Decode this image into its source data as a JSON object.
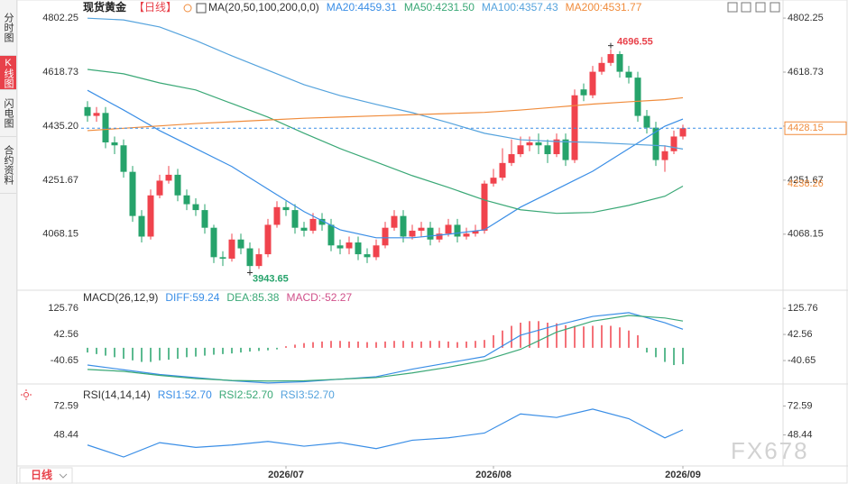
{
  "sidebar": {
    "tabs": [
      "分时图",
      "K线图",
      "闪电图",
      "合约资料"
    ],
    "active": 1
  },
  "chart_data": [
    {
      "type": "candlestick",
      "title": "现货黄金",
      "period": "【日线】",
      "ma_label": "MA(20,50,100,200,0,0)",
      "up_color": "#f0434d",
      "down_color": "#26a36b",
      "candles": {
        "open": [
          4500,
          4470,
          4480,
          4380,
          4370,
          4280,
          4130,
          4060,
          4200,
          4250,
          4270,
          4200,
          4170,
          4150,
          4090,
          3990,
          3985,
          4050,
          4020,
          3960,
          4000,
          4100,
          4160,
          4150,
          4090,
          4080,
          4120,
          4100,
          4030,
          4020,
          4040,
          4000,
          3990,
          4030,
          4090,
          4130,
          4060,
          4080,
          4090,
          4050,
          4070,
          4100,
          4060,
          4070,
          4080,
          4240,
          4260,
          4310,
          4340,
          4370,
          4380,
          4370,
          4340,
          4390,
          4320,
          4560,
          4540,
          4620,
          4650,
          4680,
          4620,
          4600,
          4470,
          4430,
          4320,
          4350,
          4400
        ],
        "high": [
          4520,
          4500,
          4500,
          4400,
          4390,
          4300,
          4150,
          4220,
          4270,
          4300,
          4290,
          4220,
          4190,
          4170,
          4100,
          4010,
          4070,
          4070,
          4040,
          4020,
          4120,
          4180,
          4180,
          4170,
          4110,
          4140,
          4140,
          4120,
          4050,
          4060,
          4060,
          4020,
          4050,
          4110,
          4150,
          4150,
          4100,
          4110,
          4110,
          4090,
          4120,
          4120,
          4090,
          4100,
          4250,
          4290,
          4360,
          4390,
          4400,
          4400,
          4410,
          4390,
          4410,
          4410,
          4560,
          4580,
          4640,
          4670,
          4696.55,
          4690,
          4640,
          4620,
          4490,
          4450,
          4370,
          4420,
          4440
        ],
        "low": [
          4450,
          4450,
          4360,
          4340,
          4260,
          4110,
          4040,
          4050,
          4190,
          4240,
          4180,
          4150,
          4130,
          4070,
          3970,
          3960,
          3975,
          4000,
          3943.65,
          3950,
          3990,
          4090,
          4130,
          4070,
          4060,
          4070,
          4080,
          4010,
          4000,
          4000,
          3980,
          3970,
          3980,
          4020,
          4080,
          4040,
          4050,
          4060,
          4030,
          4040,
          4060,
          4040,
          4050,
          4060,
          4070,
          4230,
          4250,
          4300,
          4330,
          4350,
          4340,
          4310,
          4330,
          4300,
          4310,
          4520,
          4530,
          4610,
          4640,
          4600,
          4580,
          4450,
          4410,
          4300,
          4280,
          4340,
          4390
        ],
        "close": [
          4470,
          4480,
          4380,
          4370,
          4280,
          4130,
          4060,
          4200,
          4250,
          4270,
          4200,
          4170,
          4150,
          4090,
          3990,
          3985,
          4050,
          4020,
          3960,
          4000,
          4100,
          4160,
          4150,
          4090,
          4080,
          4120,
          4100,
          4030,
          4020,
          4040,
          4000,
          3990,
          4030,
          4090,
          4130,
          4060,
          4080,
          4090,
          4050,
          4070,
          4100,
          4060,
          4070,
          4080,
          4240,
          4260,
          4310,
          4340,
          4370,
          4380,
          4370,
          4340,
          4390,
          4320,
          4540,
          4540,
          4620,
          4650,
          4680,
          4620,
          4600,
          4470,
          4430,
          4320,
          4350,
          4400,
          4428.15
        ]
      },
      "ma": {
        "x": [
          0,
          4,
          8,
          12,
          16,
          20,
          24,
          28,
          32,
          36,
          40,
          44,
          48,
          52,
          56,
          60,
          64,
          66
        ],
        "series": [
          {
            "name": "MA20:4459.31",
            "color": "#3a8ee6",
            "values": [
              4557,
              4490,
              4420,
              4359,
              4298,
              4221,
              4145,
              4083,
              4056,
              4056,
              4068,
              4083,
              4160,
              4221,
              4282,
              4359,
              4435,
              4459.31
            ]
          },
          {
            "name": "MA50:4231.50",
            "color": "#3aa876",
            "values": [
              4628,
              4613,
              4582,
              4558,
              4512,
              4466,
              4411,
              4359,
              4313,
              4267,
              4227,
              4184,
              4151,
              4139,
              4142,
              4166,
              4197,
              4231.5
            ]
          },
          {
            "name": "MA100:4357.43",
            "color": "#55a3dd",
            "values": [
              4802,
              4796,
              4772,
              4726,
              4674,
              4625,
              4576,
              4539,
              4509,
              4481,
              4447,
              4411,
              4389,
              4383,
              4380,
              4374,
              4368,
              4357.43
            ]
          },
          {
            "name": "MA200:4531.77",
            "color": "#f08c3c",
            "values": [
              4420,
              4428,
              4436,
              4444,
              4450,
              4456,
              4462,
              4466,
              4470,
              4474,
              4478,
              4482,
              4490,
              4500,
              4510,
              4518,
              4525,
              4531.77
            ]
          }
        ]
      },
      "ylim": [
        3890,
        4827
      ],
      "yticks": [
        4802.25,
        4618.73,
        {
          "value": 4435.2,
          "label": "4435.20"
        },
        4251.67,
        4068.15
      ],
      "xticks": [
        {
          "value": 22,
          "label": "2026/07"
        },
        {
          "value": 45,
          "label": "2026/08"
        },
        {
          "value": 66,
          "label": "2026/09"
        }
      ],
      "side_label": 4238.26
    },
    {
      "type": "macd",
      "title": "MACD(26,12,9)",
      "hist_label": "MACD:-52.27",
      "up_color": "#f0434d",
      "down_color": "#26a36b",
      "hist": [
        -15,
        -20,
        -25,
        -30,
        -35,
        -40,
        -45,
        -45,
        -40,
        -38,
        -35,
        -30,
        -28,
        -25,
        -22,
        -20,
        -18,
        -15,
        -12,
        -10,
        -8,
        -5,
        5,
        10,
        15,
        18,
        20,
        22,
        22,
        20,
        20,
        18,
        18,
        20,
        22,
        22,
        20,
        20,
        22,
        22,
        20,
        18,
        20,
        22,
        25,
        40,
        55,
        70,
        80,
        85,
        85,
        80,
        78,
        72,
        70,
        68,
        70,
        72,
        70,
        65,
        55,
        40,
        -15,
        -30,
        -45,
        -55,
        -52.27
      ],
      "x": [
        0,
        4,
        8,
        12,
        16,
        20,
        24,
        28,
        32,
        36,
        40,
        44,
        48,
        52,
        56,
        60,
        64,
        66
      ],
      "series": [
        {
          "name": "DIFF:59.24",
          "color": "#3a8ee6",
          "values": [
            -55,
            -70,
            -85,
            -95,
            -105,
            -112,
            -108,
            -100,
            -92,
            -68,
            -48,
            -28,
            40,
            72,
            100,
            112,
            80,
            59.24
          ]
        },
        {
          "name": "DEA:85.38",
          "color": "#3aa876",
          "values": [
            -69,
            -75,
            -88,
            -98,
            -104,
            -106,
            -105,
            -100,
            -95,
            -80,
            -62,
            -40,
            -5,
            50,
            85,
            103,
            95,
            85.38
          ]
        }
      ],
      "ylim": [
        -98,
        172
      ],
      "yticks": [
        125.76,
        42.56,
        -40.65
      ]
    },
    {
      "type": "rsi",
      "title": "RSI(14,14,14)",
      "x": [
        0,
        4,
        8,
        12,
        16,
        20,
        24,
        28,
        32,
        36,
        40,
        44,
        48,
        52,
        56,
        60,
        64,
        66
      ],
      "series": [
        {
          "name": "RSI1:52.70",
          "color": "#3a8ee6",
          "values": [
            40,
            30,
            42,
            38,
            40,
            43,
            39,
            42,
            37,
            44,
            46,
            50,
            66,
            63,
            70,
            62,
            46,
            52.7
          ]
        }
      ],
      "legend": [
        {
          "text": "RSI2:52.70",
          "color": "#3aa876"
        },
        {
          "text": "RSI3:52.70",
          "color": "#55a3dd"
        }
      ],
      "ylim": [
        24,
        88
      ],
      "yticks": [
        72.59,
        48.44
      ]
    }
  ],
  "footer": {
    "period": "日线"
  },
  "watermark": "FX678"
}
